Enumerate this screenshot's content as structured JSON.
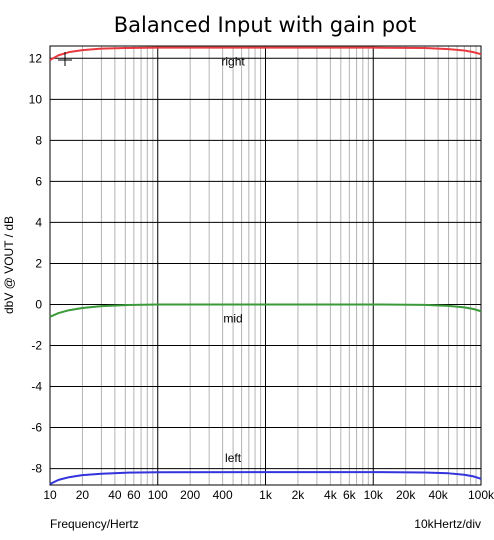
{
  "chart_data": {
    "type": "line",
    "title": "Balanced Input with gain pot",
    "xlabel": "Frequency/Hertz",
    "ylabel": "dbV @ VOUT / dB",
    "scale_note": "10kHertz/div",
    "x_scale": "log",
    "xlim": [
      10,
      100000
    ],
    "ylim": [
      -8.8,
      12.6
    ],
    "y_ticks": [
      12,
      10,
      8,
      6,
      4,
      2,
      0,
      -2,
      -4,
      -6,
      -8
    ],
    "x_ticks": [
      {
        "value": 10,
        "label": "10"
      },
      {
        "value": 20,
        "label": "20"
      },
      {
        "value": 40,
        "label": "40"
      },
      {
        "value": 60,
        "label": "60"
      },
      {
        "value": 100,
        "label": "100"
      },
      {
        "value": 200,
        "label": "200"
      },
      {
        "value": 400,
        "label": "400"
      },
      {
        "value": 1000,
        "label": "1k"
      },
      {
        "value": 2000,
        "label": "2k"
      },
      {
        "value": 4000,
        "label": "4k"
      },
      {
        "value": 6000,
        "label": "6k"
      },
      {
        "value": 10000,
        "label": "10k"
      },
      {
        "value": 20000,
        "label": "20k"
      },
      {
        "value": 40000,
        "label": "40k"
      },
      {
        "value": 100000,
        "label": "100k"
      }
    ],
    "grid": true,
    "series": [
      {
        "name": "right",
        "color": "#e8393f",
        "x": [
          10,
          12,
          15,
          20,
          30,
          50,
          100,
          1000,
          10000,
          30000,
          50000,
          70000,
          85000,
          100000
        ],
        "values": [
          11.92,
          12.15,
          12.3,
          12.4,
          12.47,
          12.5,
          12.52,
          12.52,
          12.52,
          12.5,
          12.45,
          12.38,
          12.3,
          12.2
        ]
      },
      {
        "name": "mid",
        "color": "#3a9a3a",
        "x": [
          10,
          12,
          15,
          20,
          30,
          50,
          100,
          1000,
          10000,
          30000,
          50000,
          70000,
          85000,
          100000
        ],
        "values": [
          -0.6,
          -0.42,
          -0.28,
          -0.17,
          -0.08,
          -0.03,
          0.0,
          0.0,
          0.0,
          -0.02,
          -0.07,
          -0.14,
          -0.22,
          -0.33
        ]
      },
      {
        "name": "left",
        "color": "#3333dd",
        "x": [
          10,
          12,
          15,
          20,
          30,
          50,
          100,
          1000,
          10000,
          30000,
          50000,
          70000,
          85000,
          100000
        ],
        "values": [
          -8.75,
          -8.55,
          -8.42,
          -8.32,
          -8.25,
          -8.2,
          -8.18,
          -8.17,
          -8.17,
          -8.19,
          -8.23,
          -8.3,
          -8.38,
          -8.5
        ]
      }
    ]
  }
}
